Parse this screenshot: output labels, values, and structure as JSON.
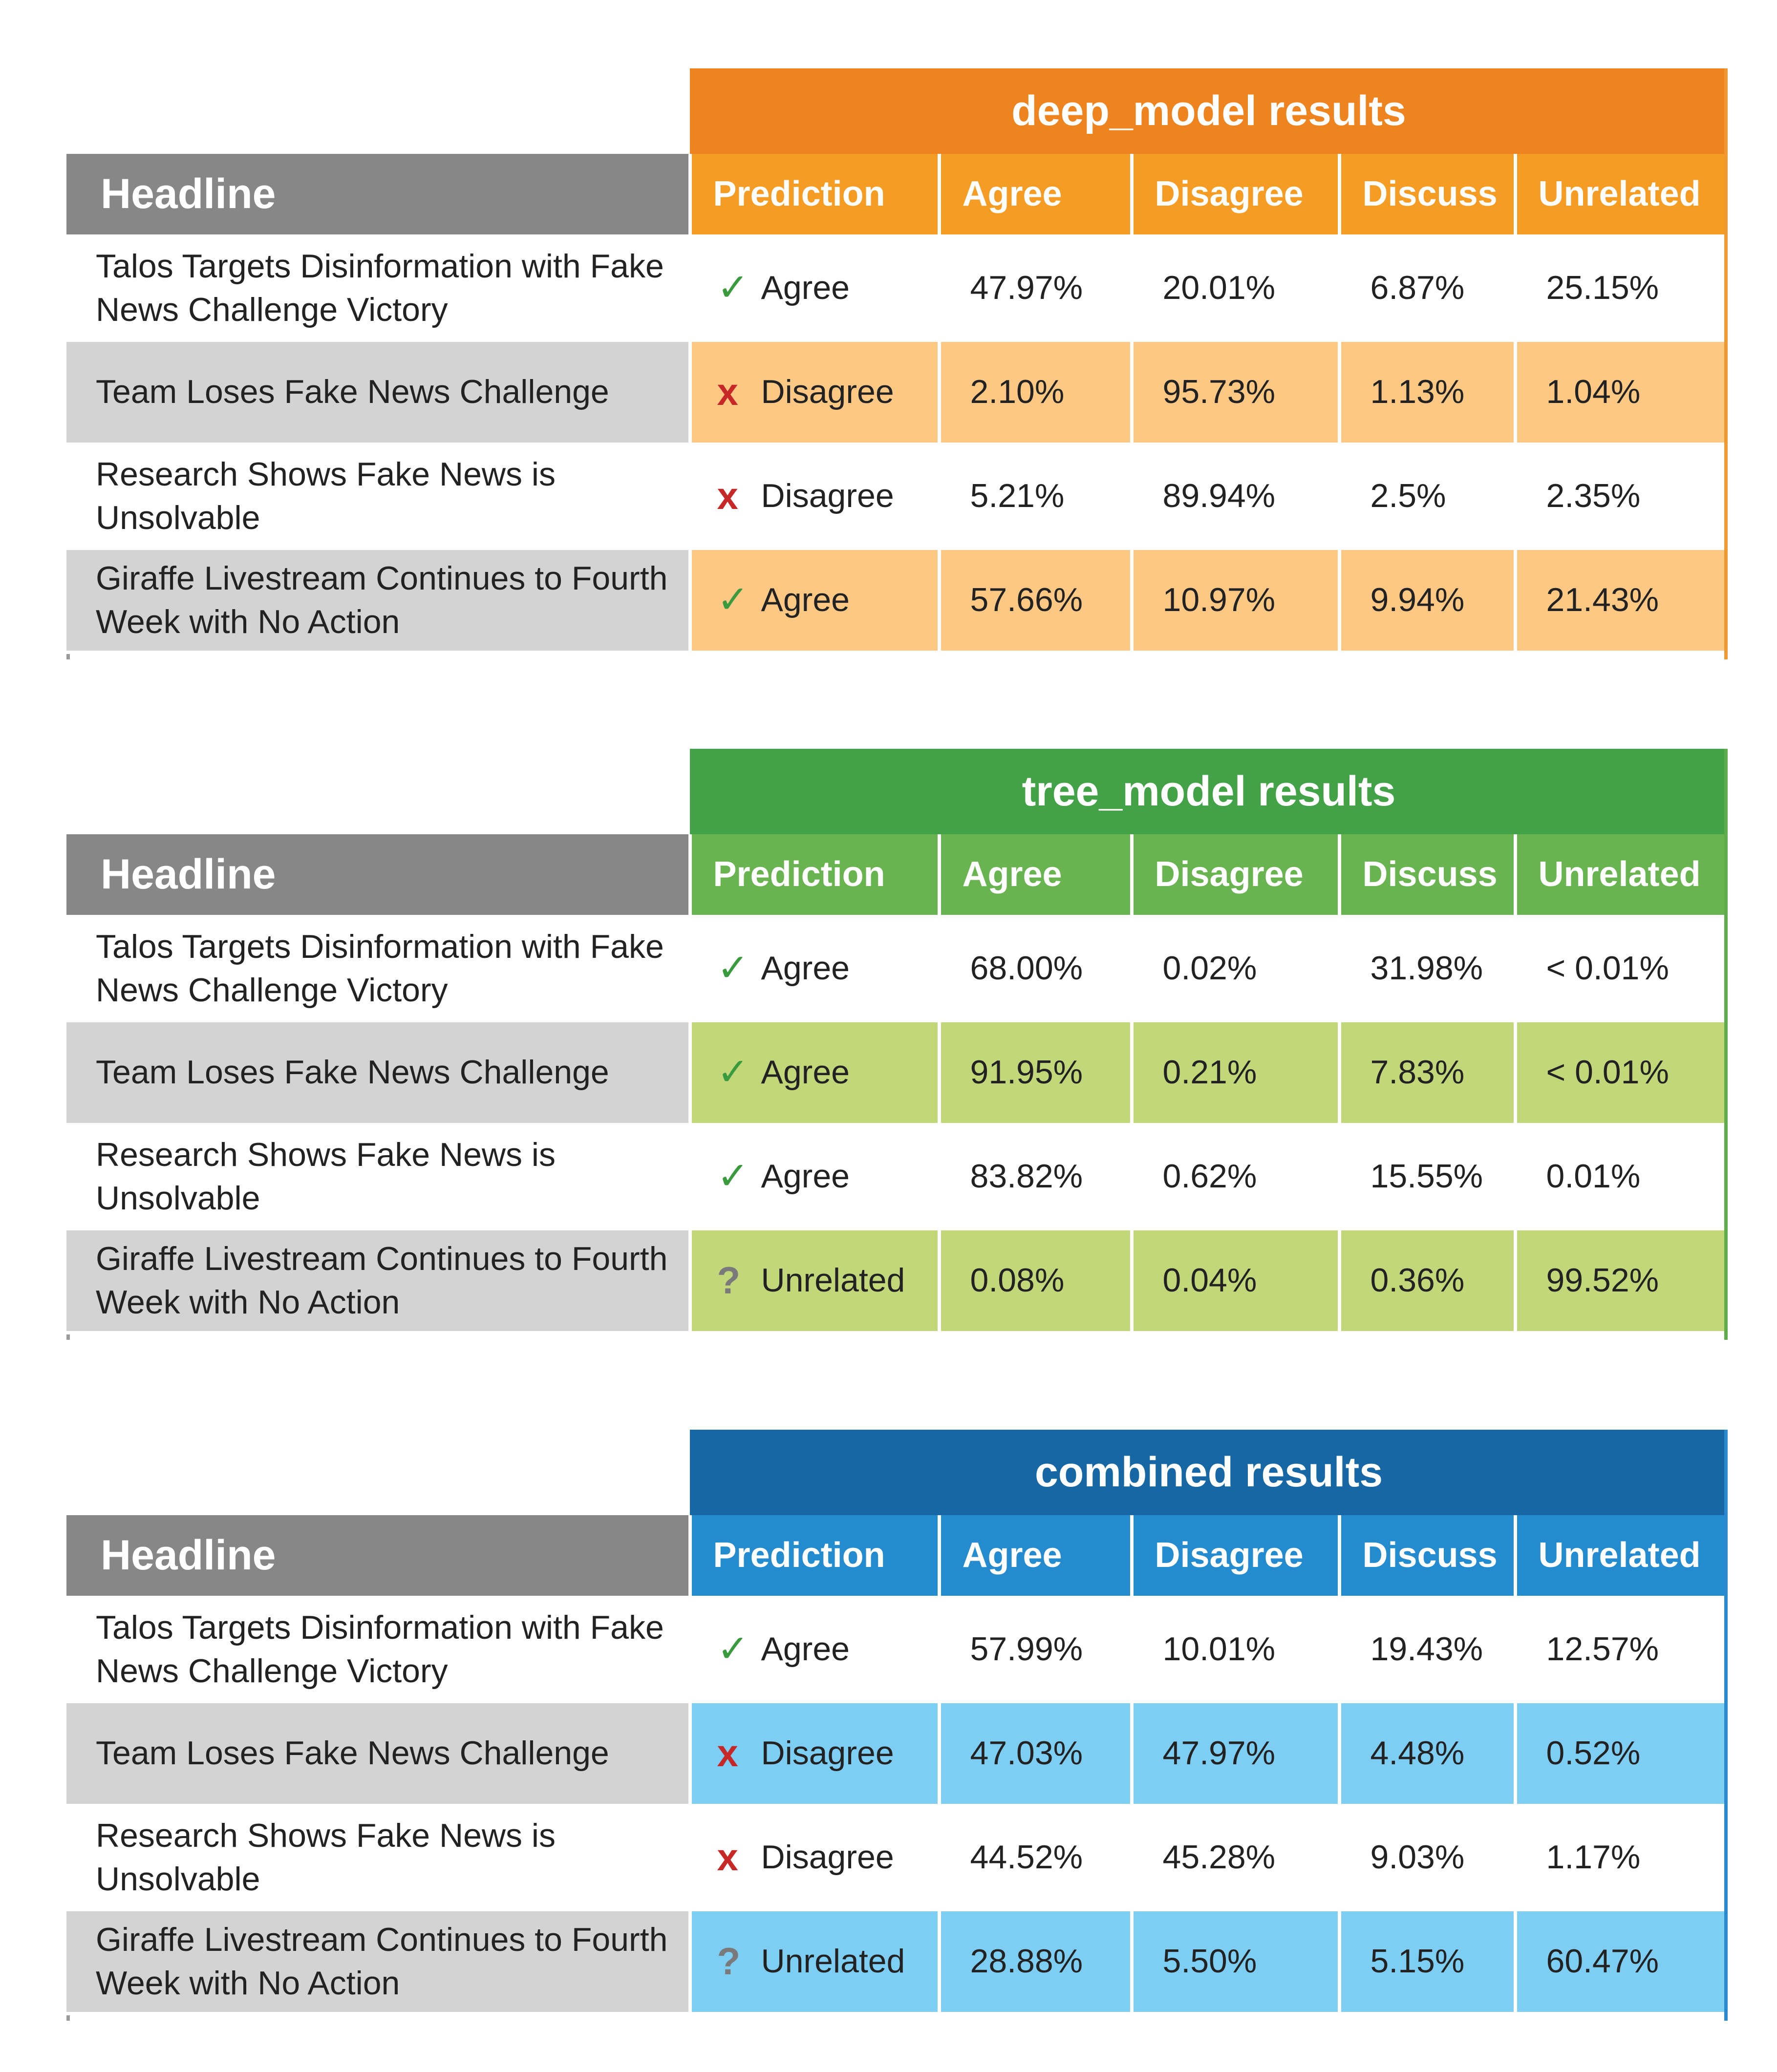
{
  "columns": {
    "headline": "Headline",
    "prediction": "Prediction",
    "agree": "Agree",
    "disagree": "Disagree",
    "discuss": "Discuss",
    "unrelated": "Unrelated"
  },
  "marks": {
    "check": "✓",
    "cross": "x",
    "question": "?"
  },
  "panels": [
    {
      "title": "deep_model results",
      "colors": {
        "title_bg": "#EE8420",
        "header_bg": "#F49C23",
        "row_bg": "#FCC884",
        "edge": "#EE9A30"
      },
      "rows": [
        {
          "headline": "Talos Targets Disinformation with Fake News Challenge Victory",
          "prediction": "Agree",
          "icon": "check-icon",
          "agree": "47.97%",
          "disagree": "20.01%",
          "discuss": "6.87%",
          "unrelated": "25.15%"
        },
        {
          "headline": "Team Loses Fake News Challenge",
          "prediction": "Disagree",
          "icon": "cross-icon",
          "agree": "2.10%",
          "disagree": "95.73%",
          "discuss": "1.13%",
          "unrelated": "1.04%"
        },
        {
          "headline": "Research Shows Fake News is Unsolvable",
          "prediction": "Disagree",
          "icon": "cross-icon",
          "agree": "5.21%",
          "disagree": "89.94%",
          "discuss": "2.5%",
          "unrelated": "2.35%"
        },
        {
          "headline": "Giraffe Livestream Continues to Fourth Week with No Action",
          "prediction": "Agree",
          "icon": "check-icon",
          "agree": "57.66%",
          "disagree": "10.97%",
          "discuss": "9.94%",
          "unrelated": "21.43%"
        }
      ]
    },
    {
      "title": "tree_model results",
      "colors": {
        "title_bg": "#43A247",
        "header_bg": "#69B451",
        "row_bg": "#C2D77A",
        "edge": "#5DAE4A"
      },
      "rows": [
        {
          "headline": "Talos Targets Disinformation with Fake News Challenge Victory",
          "prediction": "Agree",
          "icon": "check-icon",
          "agree": "68.00%",
          "disagree": "0.02%",
          "discuss": "31.98%",
          "unrelated": "< 0.01%"
        },
        {
          "headline": "Team Loses Fake News Challenge",
          "prediction": "Agree",
          "icon": "check-icon",
          "agree": "91.95%",
          "disagree": "0.21%",
          "discuss": "7.83%",
          "unrelated": "< 0.01%"
        },
        {
          "headline": "Research Shows Fake News is Unsolvable",
          "prediction": "Agree",
          "icon": "check-icon",
          "agree": "83.82%",
          "disagree": "0.62%",
          "discuss": "15.55%",
          "unrelated": "0.01%"
        },
        {
          "headline": "Giraffe Livestream Continues to Fourth Week with No Action",
          "prediction": "Unrelated",
          "icon": "question-icon",
          "agree": "0.08%",
          "disagree": "0.04%",
          "discuss": "0.36%",
          "unrelated": "99.52%"
        }
      ]
    },
    {
      "title": "combined results",
      "colors": {
        "title_bg": "#1767A5",
        "header_bg": "#258BCF",
        "row_bg": "#7ECDF3",
        "edge": "#2A8AD0"
      },
      "rows": [
        {
          "headline": "Talos Targets Disinformation with Fake News Challenge Victory",
          "prediction": "Agree",
          "icon": "check-icon",
          "agree": "57.99%",
          "disagree": "10.01%",
          "discuss": "19.43%",
          "unrelated": "12.57%"
        },
        {
          "headline": "Team Loses Fake News Challenge",
          "prediction": "Disagree",
          "icon": "cross-icon",
          "agree": "47.03%",
          "disagree": "47.97%",
          "discuss": "4.48%",
          "unrelated": "0.52%"
        },
        {
          "headline": "Research Shows Fake News is Unsolvable",
          "prediction": "Disagree",
          "icon": "cross-icon",
          "agree": "44.52%",
          "disagree": "45.28%",
          "discuss": "9.03%",
          "unrelated": "1.17%"
        },
        {
          "headline": "Giraffe Livestream Continues to Fourth Week with No Action",
          "prediction": "Unrelated",
          "icon": "question-icon",
          "agree": "28.88%",
          "disagree": "5.50%",
          "discuss": "5.15%",
          "unrelated": "60.47%"
        }
      ]
    }
  ]
}
